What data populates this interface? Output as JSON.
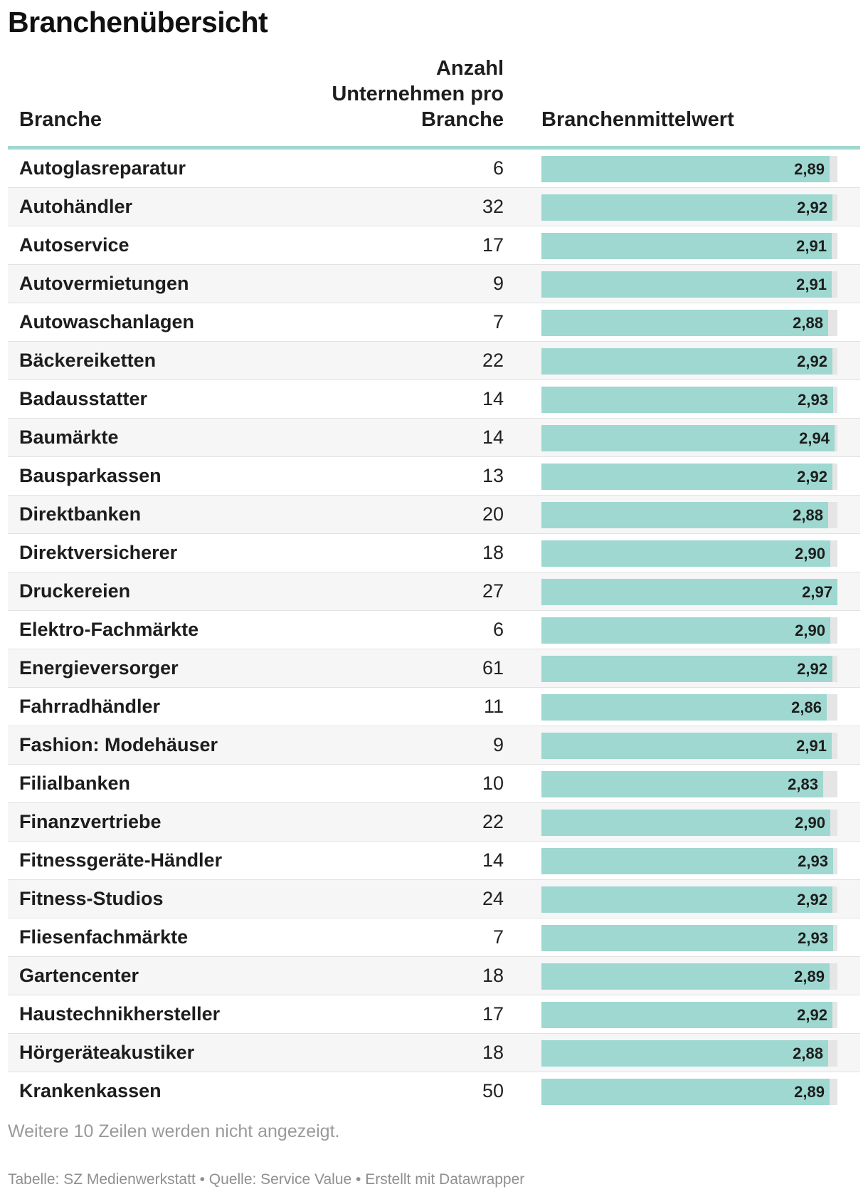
{
  "title": "Branchenübersicht",
  "columns": {
    "branche": "Branche",
    "anzahl": "Anzahl Unternehmen pro Branche",
    "mittel": "Branchenmittelwert"
  },
  "colors": {
    "bar": "#9ed8d0",
    "track": "#e5e5e5",
    "header_line": "#9ed8d0"
  },
  "chart_data": {
    "type": "table",
    "title": "Branchenübersicht",
    "columns": [
      "Branche",
      "Anzahl Unternehmen pro Branche",
      "Branchenmittelwert"
    ],
    "bar_range": [
      0,
      2.97
    ],
    "rows": [
      {
        "branche": "Autoglasreparatur",
        "anzahl": "6",
        "mittel": 2.89,
        "mittel_label": "2,89"
      },
      {
        "branche": "Autohändler",
        "anzahl": "32",
        "mittel": 2.92,
        "mittel_label": "2,92"
      },
      {
        "branche": "Autoservice",
        "anzahl": "17",
        "mittel": 2.91,
        "mittel_label": "2,91"
      },
      {
        "branche": "Autovermietungen",
        "anzahl": "9",
        "mittel": 2.91,
        "mittel_label": "2,91"
      },
      {
        "branche": "Autowaschanlagen",
        "anzahl": "7",
        "mittel": 2.88,
        "mittel_label": "2,88"
      },
      {
        "branche": "Bäckereiketten",
        "anzahl": "22",
        "mittel": 2.92,
        "mittel_label": "2,92"
      },
      {
        "branche": "Badausstatter",
        "anzahl": "14",
        "mittel": 2.93,
        "mittel_label": "2,93"
      },
      {
        "branche": "Baumärkte",
        "anzahl": "14",
        "mittel": 2.94,
        "mittel_label": "2,94"
      },
      {
        "branche": "Bausparkassen",
        "anzahl": "13",
        "mittel": 2.92,
        "mittel_label": "2,92"
      },
      {
        "branche": "Direktbanken",
        "anzahl": "20",
        "mittel": 2.88,
        "mittel_label": "2,88"
      },
      {
        "branche": "Direktversicherer",
        "anzahl": "18",
        "mittel": 2.9,
        "mittel_label": "2,90"
      },
      {
        "branche": "Druckereien",
        "anzahl": "27",
        "mittel": 2.97,
        "mittel_label": "2,97"
      },
      {
        "branche": "Elektro-Fachmärkte",
        "anzahl": "6",
        "mittel": 2.9,
        "mittel_label": "2,90"
      },
      {
        "branche": "Energieversorger",
        "anzahl": "61",
        "mittel": 2.92,
        "mittel_label": "2,92"
      },
      {
        "branche": "Fahrradhändler",
        "anzahl": "11",
        "mittel": 2.86,
        "mittel_label": "2,86"
      },
      {
        "branche": "Fashion: Modehäuser",
        "anzahl": "9",
        "mittel": 2.91,
        "mittel_label": "2,91"
      },
      {
        "branche": "Filialbanken",
        "anzahl": "10",
        "mittel": 2.83,
        "mittel_label": "2,83"
      },
      {
        "branche": "Finanzvertriebe",
        "anzahl": "22",
        "mittel": 2.9,
        "mittel_label": "2,90"
      },
      {
        "branche": "Fitnessgeräte-Händler",
        "anzahl": "14",
        "mittel": 2.93,
        "mittel_label": "2,93"
      },
      {
        "branche": "Fitness-Studios",
        "anzahl": "24",
        "mittel": 2.92,
        "mittel_label": "2,92"
      },
      {
        "branche": "Fliesenfachmärkte",
        "anzahl": "7",
        "mittel": 2.93,
        "mittel_label": "2,93"
      },
      {
        "branche": "Gartencenter",
        "anzahl": "18",
        "mittel": 2.89,
        "mittel_label": "2,89"
      },
      {
        "branche": "Haustechnikhersteller",
        "anzahl": "17",
        "mittel": 2.92,
        "mittel_label": "2,92"
      },
      {
        "branche": "Hörgeräteakustiker",
        "anzahl": "18",
        "mittel": 2.88,
        "mittel_label": "2,88"
      },
      {
        "branche": "Krankenkassen",
        "anzahl": "50",
        "mittel": 2.89,
        "mittel_label": "2,89"
      }
    ]
  },
  "note": "Weitere 10 Zeilen werden nicht angezeigt.",
  "footer": "Tabelle: SZ Medienwerkstatt • Quelle: Service Value • Erstellt mit Datawrapper"
}
